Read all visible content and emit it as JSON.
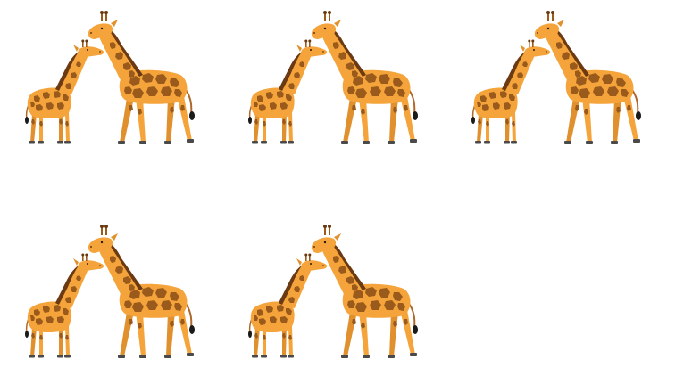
{
  "scene": {
    "background": "#ffffff",
    "giraffe_pair_count": 5,
    "items": [
      {
        "icon": "giraffe-pair-icon"
      },
      {
        "icon": "giraffe-pair-icon"
      },
      {
        "icon": "giraffe-pair-icon"
      },
      {
        "icon": "giraffe-pair-icon"
      },
      {
        "icon": "giraffe-pair-icon"
      }
    ]
  },
  "colors": {
    "body": "#f4a43a",
    "spots": "#9a5a1c",
    "mane": "#6b3a12",
    "hoof": "#4a4a4a",
    "tail_tuft": "#1a1a1a"
  }
}
